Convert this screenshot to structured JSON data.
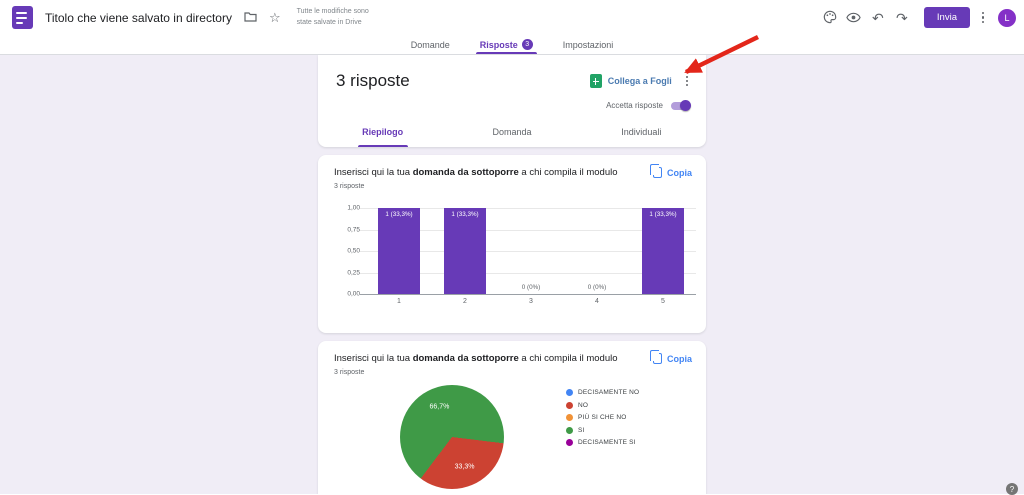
{
  "colors": {
    "accent_purple": "#673ab7",
    "page_background": "#f0edf6",
    "link_blue": "#4285f4",
    "sheets_link_text": "#4a7ab0",
    "sheets_icon_green": "#21a366",
    "annotation_arrow_red": "#e3261a"
  },
  "topbar": {
    "title": "Titolo che viene salvato in directory",
    "saved_status_line1": "Tutte le modifiche sono",
    "saved_status_line2": "state salvate in Drive",
    "send_label": "Invia",
    "avatar_letter": "L",
    "icons": {
      "star": "☆",
      "undo": "↶",
      "redo": "↷"
    }
  },
  "tabs": [
    {
      "label": "Domande",
      "active": false
    },
    {
      "label": "Risposte",
      "active": true,
      "badge": "3"
    },
    {
      "label": "Impostazioni",
      "active": false
    }
  ],
  "responses_panel": {
    "title": "3 risposte",
    "link_to_sheets_label": "Collega a Fogli",
    "accept_responses_label": "Accetta risposte",
    "accept_responses_on": true,
    "subtabs": [
      {
        "label": "Riepilogo",
        "active": true
      },
      {
        "label": "Domanda",
        "active": false
      },
      {
        "label": "Individuali",
        "active": false
      }
    ]
  },
  "cards": [
    {
      "title_prefix": "Inserisci qui la tua ",
      "title_bold": "domanda da sottoporre",
      "title_suffix": " a chi compila il modulo",
      "responses_label": "3 risposte",
      "copy_label": "Copia"
    },
    {
      "title_prefix": "Inserisci qui la tua ",
      "title_bold": "domanda da sottoporre",
      "title_suffix": " a chi compila il modulo",
      "responses_label": "3 risposte",
      "copy_label": "Copia"
    }
  ],
  "chart_data": [
    {
      "type": "bar",
      "title": "Inserisci qui la tua domanda da sottoporre a chi compila il modulo",
      "categories": [
        "1",
        "2",
        "3",
        "4",
        "5"
      ],
      "values": [
        1,
        1,
        0,
        0,
        1
      ],
      "bar_labels": [
        "1 (33,3%)",
        "1 (33,3%)",
        "0 (0%)",
        "0 (0%)",
        "1 (33,3%)"
      ],
      "y_ticks_top_to_bottom": [
        "1,00",
        "0,75",
        "0,50",
        "0,25",
        "0,00"
      ],
      "ylim": [
        0,
        1
      ],
      "bar_color": "#673ab7",
      "grid": true,
      "legend_position": "none"
    },
    {
      "type": "pie",
      "title": "Inserisci qui la tua domanda da sottoporre a chi compila il modulo",
      "total": 3,
      "rotation_deg": 97,
      "legend_position": "right",
      "slices": [
        {
          "label": "DECISAMENTE NO",
          "value": 0,
          "color": "#4285f4"
        },
        {
          "label": "NO",
          "value": 1,
          "pct_label": "33,3%",
          "color": "#cc4232"
        },
        {
          "label": "PIÙ SI CHE NO",
          "value": 0,
          "color": "#f19237"
        },
        {
          "label": "SI",
          "value": 2,
          "pct_label": "66,7%",
          "color": "#3f9a47"
        },
        {
          "label": "DECISAMENTE SI",
          "value": 0,
          "color": "#990099"
        }
      ]
    }
  ],
  "help_label": "?"
}
